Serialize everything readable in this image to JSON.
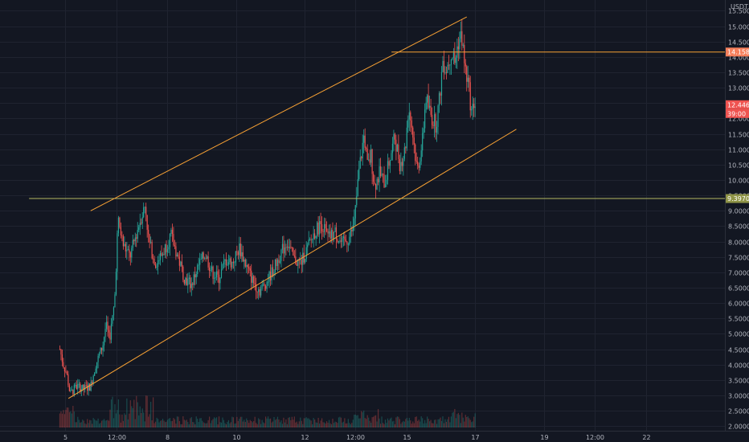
{
  "chart_data": {
    "type": "candlestick",
    "currency": "USDT",
    "y_axis": {
      "ticks": [
        "15.5000",
        "15.0000",
        "14.5000",
        "14.0000",
        "13.5000",
        "13.0000",
        "12.5000",
        "12.0000",
        "11.5000",
        "11.0000",
        "10.5000",
        "10.0000",
        "9.5000",
        "9.0000",
        "8.5000",
        "8.0000",
        "7.5000",
        "7.0000",
        "6.5000",
        "6.0000",
        "5.5000",
        "5.0000",
        "4.5000",
        "4.0000",
        "3.5000",
        "3.0000",
        "2.5000",
        "2.0000"
      ],
      "values": [
        15.5,
        15.0,
        14.5,
        14.0,
        13.5,
        13.0,
        12.5,
        12.0,
        11.5,
        11.0,
        10.5,
        10.0,
        9.5,
        9.0,
        8.5,
        8.0,
        7.5,
        7.0,
        6.5,
        6.0,
        5.5,
        5.0,
        4.5,
        4.0,
        3.5,
        3.0,
        2.5,
        2.0
      ],
      "range": [
        1.85,
        15.85
      ]
    },
    "x_axis": {
      "labels": [
        "5",
        "12:00",
        "8",
        "10",
        "12",
        "12:00",
        "15",
        "17",
        "19",
        "12:00",
        "22"
      ],
      "positions": [
        5.0,
        6.5,
        8.0,
        10.0,
        12.0,
        13.5,
        15.0,
        17.0,
        19.0,
        20.5,
        22.0
      ],
      "range": [
        3.1,
        24.3
      ]
    },
    "price_markers": [
      {
        "label": "14.1588",
        "value": 14.1588,
        "color": "#f57f5b",
        "kind": "line"
      },
      {
        "label": "12.4469",
        "value": 12.4469,
        "color": "#ef5350",
        "kind": "last"
      },
      {
        "label": "39:00",
        "value": 12.16,
        "color": "#ef5350",
        "kind": "countdown"
      },
      {
        "label": "9.3970",
        "value": 9.397,
        "color": "#c2c480",
        "kind": "line"
      }
    ],
    "horizontal_lines": [
      {
        "value": 14.1588,
        "x_start": 14.55,
        "color": "#f7a134"
      },
      {
        "value": 9.397,
        "x_start": 3.95,
        "color": "#b5b862"
      }
    ],
    "trend_lines": [
      {
        "name": "upper-channel",
        "from": [
          5.75,
          9.0
        ],
        "to": [
          16.75,
          15.3
        ],
        "color": "#f7a134"
      },
      {
        "name": "lower-channel",
        "from": [
          5.1,
          2.9
        ],
        "to": [
          18.2,
          11.65
        ],
        "color": "#f7a134"
      }
    ],
    "price_path": [
      {
        "t": 4.85,
        "p": 4.5
      },
      {
        "t": 4.95,
        "p": 4.0
      },
      {
        "t": 5.05,
        "p": 3.7
      },
      {
        "t": 5.15,
        "p": 3.05
      },
      {
        "t": 5.35,
        "p": 3.3
      },
      {
        "t": 5.55,
        "p": 3.2
      },
      {
        "t": 5.75,
        "p": 3.3
      },
      {
        "t": 5.9,
        "p": 4.0
      },
      {
        "t": 6.1,
        "p": 4.6
      },
      {
        "t": 6.2,
        "p": 5.3
      },
      {
        "t": 6.3,
        "p": 4.8
      },
      {
        "t": 6.45,
        "p": 6.0
      },
      {
        "t": 6.55,
        "p": 8.7
      },
      {
        "t": 6.7,
        "p": 7.9
      },
      {
        "t": 6.9,
        "p": 7.5
      },
      {
        "t": 7.1,
        "p": 8.3
      },
      {
        "t": 7.2,
        "p": 8.7
      },
      {
        "t": 7.35,
        "p": 9.2
      },
      {
        "t": 7.45,
        "p": 8.0
      },
      {
        "t": 7.65,
        "p": 7.3
      },
      {
        "t": 7.85,
        "p": 7.6
      },
      {
        "t": 8.1,
        "p": 8.2
      },
      {
        "t": 8.3,
        "p": 7.5
      },
      {
        "t": 8.5,
        "p": 6.8
      },
      {
        "t": 8.7,
        "p": 6.6
      },
      {
        "t": 8.9,
        "p": 7.2
      },
      {
        "t": 9.1,
        "p": 7.6
      },
      {
        "t": 9.3,
        "p": 7.0
      },
      {
        "t": 9.5,
        "p": 6.8
      },
      {
        "t": 9.7,
        "p": 7.4
      },
      {
        "t": 9.9,
        "p": 7.3
      },
      {
        "t": 10.1,
        "p": 7.8
      },
      {
        "t": 10.3,
        "p": 7.2
      },
      {
        "t": 10.5,
        "p": 6.7
      },
      {
        "t": 10.7,
        "p": 6.4
      },
      {
        "t": 10.9,
        "p": 6.7
      },
      {
        "t": 11.1,
        "p": 7.1
      },
      {
        "t": 11.3,
        "p": 7.6
      },
      {
        "t": 11.5,
        "p": 8.0
      },
      {
        "t": 11.7,
        "p": 7.4
      },
      {
        "t": 11.9,
        "p": 7.3
      },
      {
        "t": 12.1,
        "p": 7.8
      },
      {
        "t": 12.3,
        "p": 8.3
      },
      {
        "t": 12.5,
        "p": 8.6
      },
      {
        "t": 12.7,
        "p": 8.1
      },
      {
        "t": 12.9,
        "p": 8.3
      },
      {
        "t": 13.1,
        "p": 7.9
      },
      {
        "t": 13.3,
        "p": 8.1
      },
      {
        "t": 13.45,
        "p": 8.5
      },
      {
        "t": 13.6,
        "p": 10.3
      },
      {
        "t": 13.75,
        "p": 11.5
      },
      {
        "t": 13.85,
        "p": 10.4
      },
      {
        "t": 13.95,
        "p": 10.8
      },
      {
        "t": 14.05,
        "p": 9.8
      },
      {
        "t": 14.2,
        "p": 10.2
      },
      {
        "t": 14.35,
        "p": 9.9
      },
      {
        "t": 14.5,
        "p": 10.7
      },
      {
        "t": 14.65,
        "p": 11.4
      },
      {
        "t": 14.8,
        "p": 10.5
      },
      {
        "t": 14.95,
        "p": 11.0
      },
      {
        "t": 15.05,
        "p": 12.4
      },
      {
        "t": 15.15,
        "p": 11.7
      },
      {
        "t": 15.3,
        "p": 10.3
      },
      {
        "t": 15.45,
        "p": 11.2
      },
      {
        "t": 15.55,
        "p": 12.7
      },
      {
        "t": 15.7,
        "p": 12.1
      },
      {
        "t": 15.85,
        "p": 11.8
      },
      {
        "t": 15.95,
        "p": 12.6
      },
      {
        "t": 16.05,
        "p": 13.9
      },
      {
        "t": 16.15,
        "p": 13.6
      },
      {
        "t": 16.3,
        "p": 14.2
      },
      {
        "t": 16.4,
        "p": 13.8
      },
      {
        "t": 16.5,
        "p": 14.5
      },
      {
        "t": 16.6,
        "p": 14.7
      },
      {
        "t": 16.7,
        "p": 13.6
      },
      {
        "t": 16.8,
        "p": 13.1
      },
      {
        "t": 16.9,
        "p": 12.1
      },
      {
        "t": 16.97,
        "p": 12.6
      },
      {
        "t": 17.0,
        "p": 12.45
      }
    ]
  }
}
